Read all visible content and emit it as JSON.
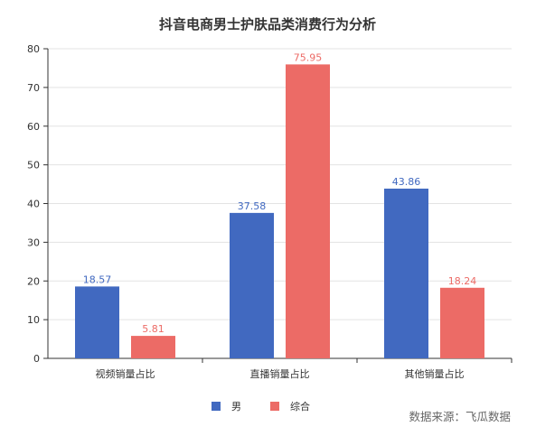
{
  "chart_data": {
    "type": "bar",
    "title": "抖音电商男士护肤品类消费行为分析",
    "categories": [
      "视频销量占比",
      "直播销量占比",
      "其他销量占比"
    ],
    "series": [
      {
        "name": "男",
        "values": [
          18.57,
          37.58,
          43.86
        ],
        "color": "#4169c0"
      },
      {
        "name": "综合",
        "values": [
          5.81,
          75.95,
          18.24
        ],
        "color": "#ec6b66"
      }
    ],
    "ylim": [
      0,
      80
    ],
    "yticks": [
      0,
      10,
      20,
      30,
      40,
      50,
      60,
      70,
      80
    ],
    "grid": true,
    "legend_position": "bottom"
  },
  "source_note": "数据来源：飞瓜数据"
}
